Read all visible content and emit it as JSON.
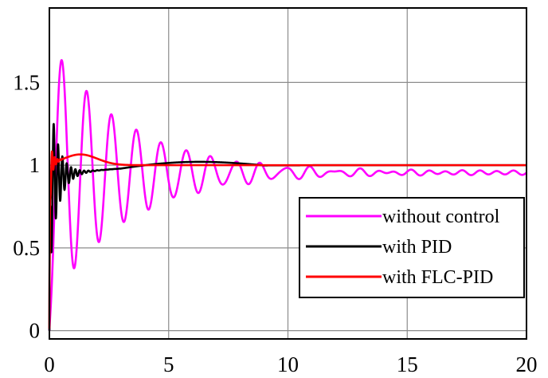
{
  "chart_data": {
    "type": "line",
    "title": "",
    "xlabel": "",
    "ylabel": "",
    "xlim": [
      0,
      20
    ],
    "ylim": [
      -0.05,
      1.95
    ],
    "x_ticks": [
      0,
      5,
      10,
      15,
      20
    ],
    "x_tick_labels": [
      "0",
      "5",
      "10",
      "15",
      "20"
    ],
    "y_ticks": [
      0,
      0.5,
      1,
      1.5
    ],
    "y_tick_labels": [
      "0",
      "0.5",
      "1",
      "1.5"
    ],
    "grid": true,
    "legend_position": "bottom-right",
    "series": [
      {
        "name": "without control",
        "color": "#ff00ff",
        "model": {
          "kind": "damped",
          "final": 0.955,
          "amp": 0.8,
          "tau": 3.2,
          "freq": 0.96,
          "phase": 0.0,
          "ripple": 0.012,
          "ripple_freq": 1.4
        }
      },
      {
        "name": "with PID",
        "color": "#000000",
        "model": {
          "kind": "pid",
          "final": 1.0,
          "amp": 0.55,
          "tau": 0.35,
          "freq": 5.5,
          "overshoot": 0.025
        }
      },
      {
        "name": "with FLC-PID",
        "color": "#ff0000",
        "model": {
          "kind": "flc",
          "final": 1.0,
          "amp": 0.18,
          "tau": 0.12,
          "freq": 9.0,
          "bump": 0.065
        }
      }
    ]
  }
}
